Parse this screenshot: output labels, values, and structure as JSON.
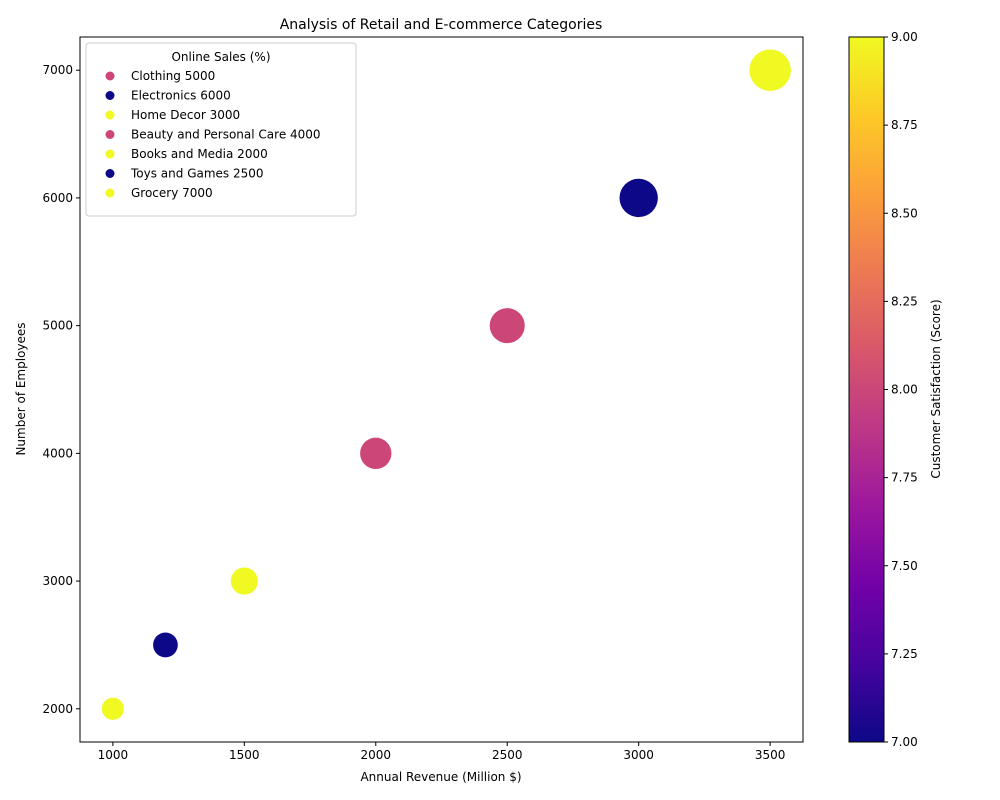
{
  "chart_data": {
    "type": "scatter",
    "title": "Analysis of Retail and E-commerce Categories",
    "xlabel": "Annual Revenue (Million $)",
    "ylabel": "Number of Employees",
    "xlim": [
      875,
      3625
    ],
    "ylim": [
      1740,
      7260
    ],
    "xticks": [
      1000,
      1500,
      2000,
      2500,
      3000,
      3500
    ],
    "yticks": [
      2000,
      3000,
      4000,
      5000,
      6000,
      7000
    ],
    "legend": {
      "title": "Online Sales (%)",
      "placement": "top-left"
    },
    "colorbar": {
      "label": "Customer Satisfaction (Score)",
      "range": [
        7.0,
        9.0
      ],
      "ticks": [
        "7.00",
        "7.25",
        "7.50",
        "7.75",
        "8.00",
        "8.25",
        "8.50",
        "8.75",
        "9.00"
      ],
      "colormap": [
        "#0d0887",
        "#46039f",
        "#7201a8",
        "#9c179e",
        "#bd3786",
        "#d8576b",
        "#ed7953",
        "#fb9f3a",
        "#fdca26",
        "#f0f921"
      ]
    },
    "points": [
      {
        "category": "Clothing",
        "legend_label": "Clothing 5000",
        "x": 2500,
        "y": 5000,
        "size_value": 5000,
        "satisfaction": 8,
        "color": "#cc4778"
      },
      {
        "category": "Electronics",
        "legend_label": "Electronics 6000",
        "x": 3000,
        "y": 6000,
        "size_value": 6000,
        "satisfaction": 7,
        "color": "#0d0887"
      },
      {
        "category": "Home Decor",
        "legend_label": "Home Decor 3000",
        "x": 1500,
        "y": 3000,
        "size_value": 3000,
        "satisfaction": 9,
        "color": "#f0f921"
      },
      {
        "category": "Beauty and Personal Care",
        "legend_label": "Beauty and Personal Care 4000",
        "x": 2000,
        "y": 4000,
        "size_value": 4000,
        "satisfaction": 8,
        "color": "#cc4778"
      },
      {
        "category": "Books and Media",
        "legend_label": "Books and Media 2000",
        "x": 1000,
        "y": 2000,
        "size_value": 2000,
        "satisfaction": 9,
        "color": "#f0f921"
      },
      {
        "category": "Toys and Games",
        "legend_label": "Toys and Games 2500",
        "x": 1200,
        "y": 2500,
        "size_value": 2500,
        "satisfaction": 7,
        "color": "#0d0887"
      },
      {
        "category": "Grocery",
        "legend_label": "Grocery 7000",
        "x": 3500,
        "y": 7000,
        "size_value": 7000,
        "satisfaction": 9,
        "color": "#f0f921"
      }
    ]
  }
}
